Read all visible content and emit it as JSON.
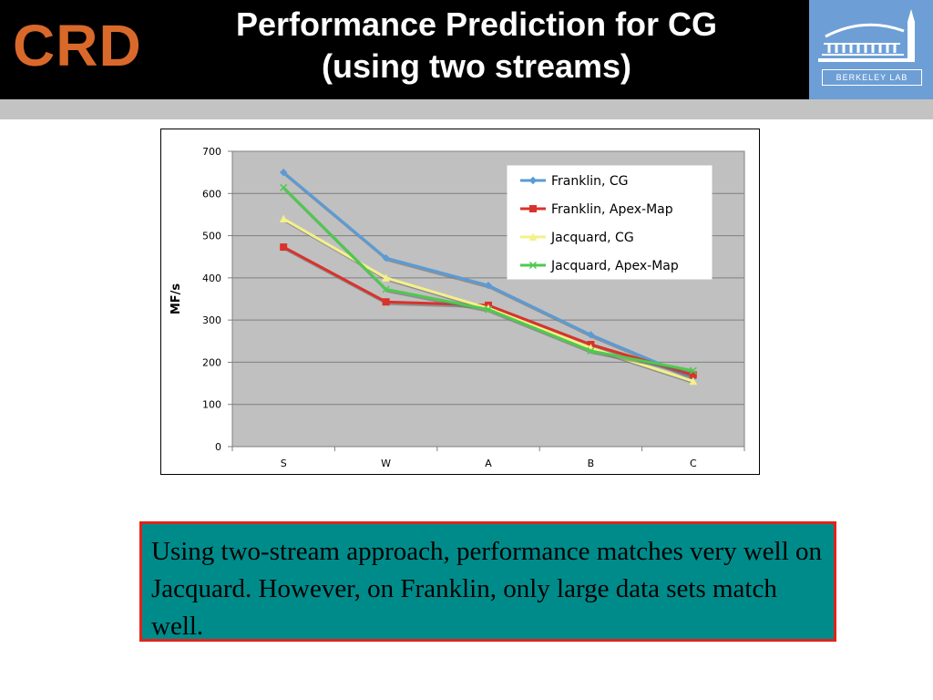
{
  "header": {
    "logo_text": "CRD",
    "title_line1": "Performance Prediction for CG",
    "title_line2": "(using two streams)",
    "lab_logo_text": "BERKELEY LAB"
  },
  "chart_data": {
    "type": "line",
    "title": "",
    "xlabel": "",
    "ylabel": "MF/s",
    "categories": [
      "S",
      "W",
      "A",
      "B",
      "C"
    ],
    "ylim": [
      0,
      700
    ],
    "yticks": [
      0,
      100,
      200,
      300,
      400,
      500,
      600,
      700
    ],
    "grid": true,
    "legend_position": "top-right",
    "series": [
      {
        "name": "Franklin, CG",
        "color": "#5b9bd5",
        "marker": "diamond",
        "values": [
          650,
          447,
          382,
          265,
          163
        ]
      },
      {
        "name": "Franklin, Apex-Map",
        "color": "#d9322b",
        "marker": "square",
        "values": [
          473,
          343,
          335,
          242,
          170
        ]
      },
      {
        "name": "Jacquard, CG",
        "color": "#f4f08a",
        "marker": "triangle",
        "values": [
          540,
          400,
          328,
          234,
          155
        ]
      },
      {
        "name": "Jacquard, Apex-Map",
        "color": "#4fc94f",
        "marker": "x",
        "values": [
          614,
          373,
          325,
          227,
          180
        ]
      }
    ]
  },
  "note": {
    "text": "Using two-stream approach, performance matches very well on Jacquard. However, on Franklin, only large data sets match well."
  }
}
